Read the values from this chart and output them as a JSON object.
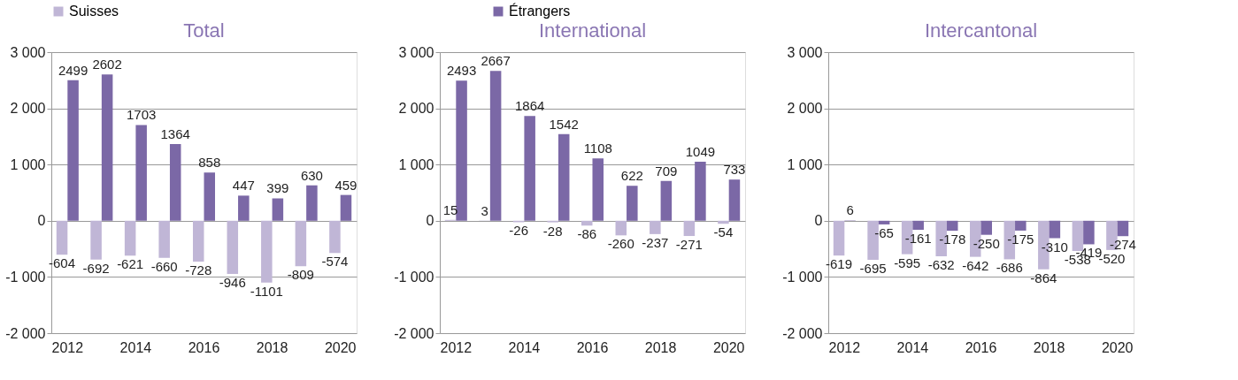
{
  "chart_data": [
    {
      "type": "bar",
      "title": "Total",
      "categories": [
        "2012",
        null,
        "2014",
        null,
        "2016",
        null,
        "2018",
        null,
        "2020"
      ],
      "ylim": [
        -2000,
        3000
      ],
      "yticks": [
        {
          "value": -2000,
          "label": "-2 000"
        },
        {
          "value": -1000,
          "label": "-1 000"
        },
        0,
        {
          "value": 1000,
          "label": "1 000"
        },
        {
          "value": 2000,
          "label": "2 000"
        },
        {
          "value": 3000,
          "label": "3 000"
        }
      ],
      "grid": "y",
      "legend": "top",
      "data_labels": true,
      "series": [
        {
          "name": "Suisses",
          "color": "#c0b6d6",
          "values": [
            -604,
            -692,
            -621,
            -660,
            -728,
            -946,
            -1101,
            -809,
            -574
          ]
        },
        {
          "name": "Étrangers",
          "color": "#7b68a6",
          "values": [
            2499,
            2602,
            1703,
            1364,
            858,
            447,
            399,
            630,
            459
          ]
        }
      ]
    },
    {
      "type": "bar",
      "title": "International",
      "categories": [
        "2012",
        null,
        "2014",
        null,
        "2016",
        null,
        "2018",
        null,
        "2020"
      ],
      "ylim": [
        -2000,
        3000
      ],
      "yticks": [
        {
          "value": -2000,
          "label": "-2 000"
        },
        {
          "value": -1000,
          "label": "-1 000"
        },
        0,
        {
          "value": 1000,
          "label": "1 000"
        },
        {
          "value": 2000,
          "label": "2 000"
        },
        {
          "value": 3000,
          "label": "3 000"
        }
      ],
      "grid": "y",
      "legend": "top",
      "data_labels": true,
      "series": [
        {
          "name": "Suisses",
          "color": "#c0b6d6",
          "values": [
            15,
            3,
            -26,
            -28,
            -86,
            -260,
            -237,
            -271,
            -54
          ]
        },
        {
          "name": "Étrangers",
          "color": "#7b68a6",
          "values": [
            2493,
            2667,
            1864,
            1542,
            1108,
            622,
            709,
            1049,
            733
          ]
        }
      ]
    },
    {
      "type": "bar",
      "title": "Intercantonal",
      "categories": [
        "2012",
        null,
        "2014",
        null,
        "2016",
        null,
        "2018",
        null,
        "2020"
      ],
      "ylim": [
        -2000,
        3000
      ],
      "yticks": [
        {
          "value": -2000,
          "label": "-2 000"
        },
        {
          "value": -1000,
          "label": "-1 000"
        },
        0,
        {
          "value": 1000,
          "label": "1 000"
        },
        {
          "value": 2000,
          "label": "2 000"
        },
        {
          "value": 3000,
          "label": "3 000"
        }
      ],
      "grid": "y",
      "legend": "top",
      "data_labels": true,
      "series": [
        {
          "name": "Suisses",
          "color": "#c0b6d6",
          "values": [
            -619,
            -695,
            -595,
            -632,
            -642,
            -686,
            -864,
            -538,
            -520
          ]
        },
        {
          "name": "Étrangers",
          "color": "#7b68a6",
          "values": [
            6,
            -65,
            -161,
            -178,
            -250,
            -175,
            -310,
            -419,
            -274
          ]
        }
      ]
    }
  ]
}
